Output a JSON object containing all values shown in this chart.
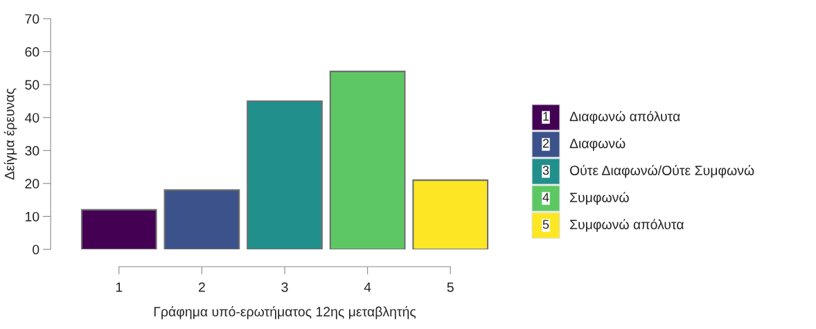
{
  "chart_data": {
    "type": "bar",
    "categories": [
      "1",
      "2",
      "3",
      "4",
      "5"
    ],
    "series": [
      {
        "name": "Διαφωνώ απόλυτα",
        "color": "#440154",
        "values": [
          12,
          null,
          null,
          null,
          null
        ]
      },
      {
        "name": "Διαφωνώ",
        "color": "#3b528b",
        "values": [
          null,
          18,
          null,
          null,
          null
        ]
      },
      {
        "name": "Ούτε Διαφωνώ/Ούτε Συμφωνώ",
        "color": "#21908c",
        "values": [
          null,
          null,
          45,
          null,
          null
        ]
      },
      {
        "name": "Συμφωνώ",
        "color": "#5dc863",
        "values": [
          null,
          null,
          null,
          54,
          null
        ]
      },
      {
        "name": "Συμφωνώ απόλυτα",
        "color": "#fde725",
        "values": [
          null,
          null,
          null,
          null,
          21
        ]
      }
    ],
    "xlabel": "Γράφημα υπό-ερωτήματος 12ης μεταβλητής",
    "ylabel": "Δείγμα έρευνας",
    "ylim": [
      0,
      70
    ],
    "yticks": [
      0,
      10,
      20,
      30,
      40,
      50,
      60,
      70
    ],
    "grid": false,
    "legend": "right"
  }
}
